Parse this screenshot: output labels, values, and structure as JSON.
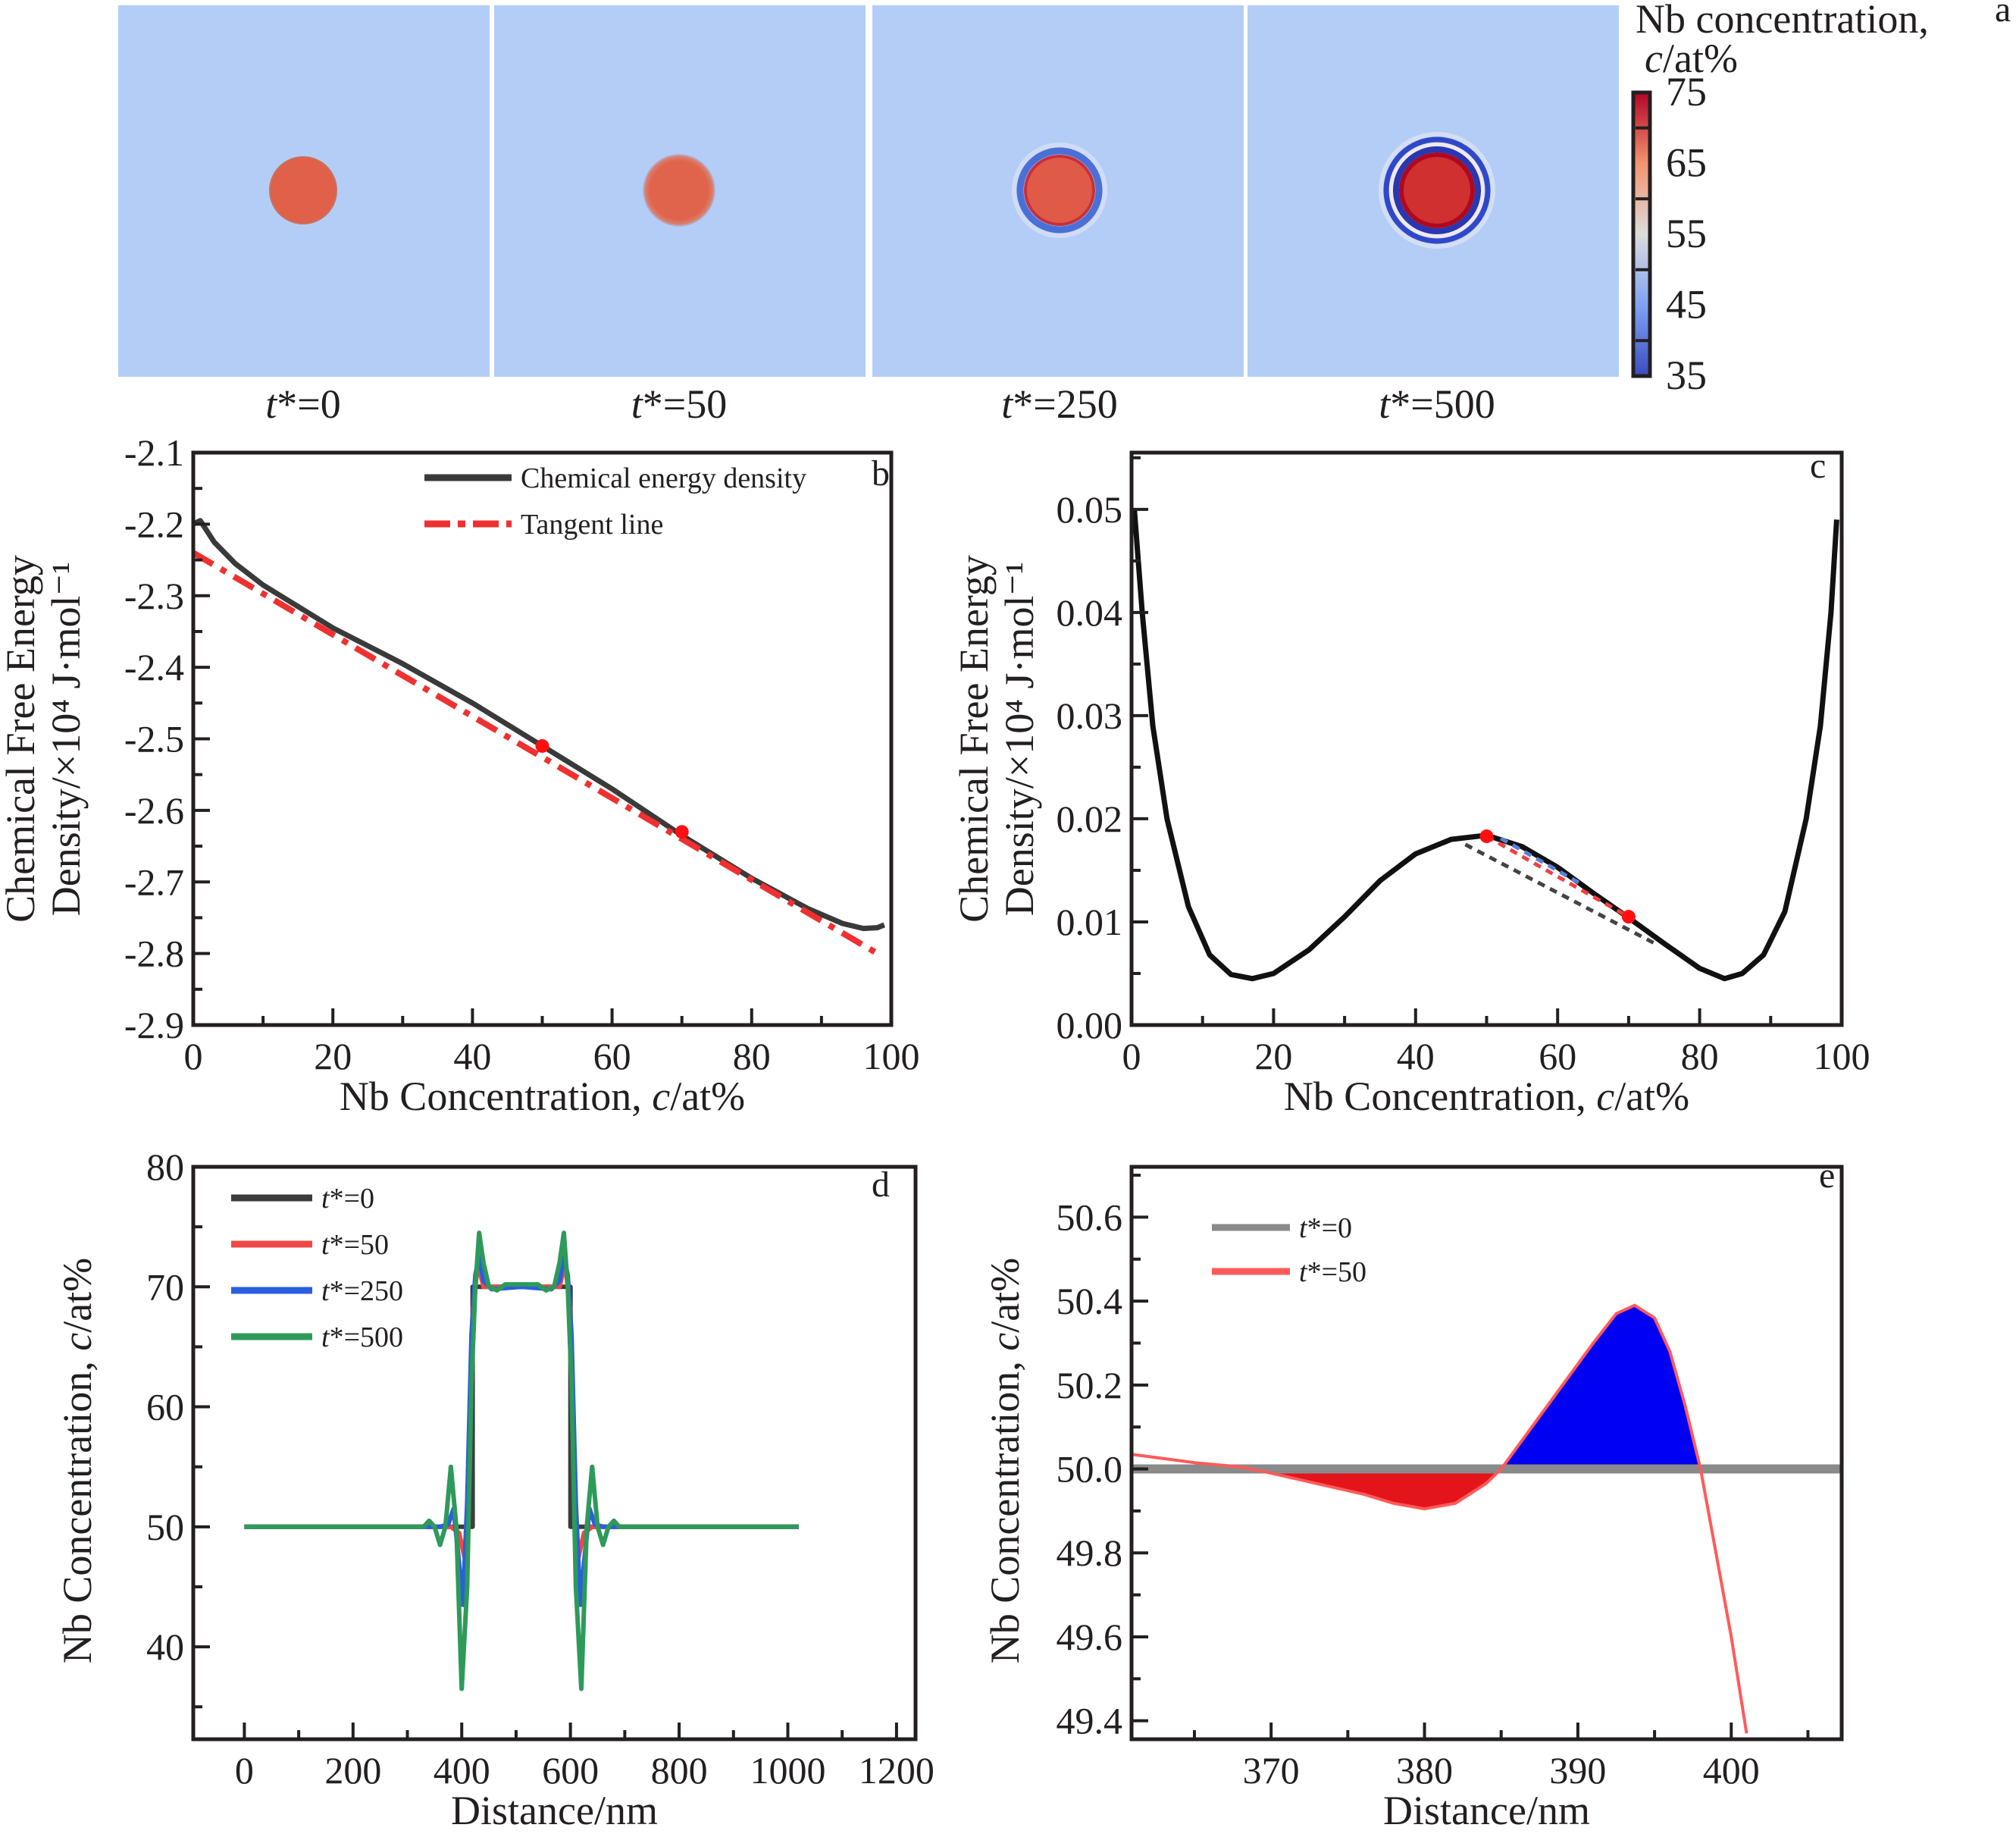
{
  "panel_a": {
    "panel_label": "a",
    "colorbar": {
      "title_line1": "Nb concentration,",
      "title_var": "c",
      "title_unit": "/at%",
      "ticks": [
        75,
        65,
        55,
        45,
        35
      ],
      "range": [
        35,
        75
      ],
      "colors": [
        "#3b4cc0",
        "#7ea3f4",
        "#dddcdb",
        "#f2946f",
        "#b40426"
      ]
    },
    "background_color": "#b4cdf7",
    "frames": [
      {
        "var": "t",
        "label": "*=0"
      },
      {
        "var": "t",
        "label": "*=50"
      },
      {
        "var": "t",
        "label": "*=250"
      },
      {
        "var": "t",
        "label": "*=500"
      }
    ]
  },
  "chart_data": [
    {
      "panel": "b",
      "type": "line",
      "xlabel_prefix": "Nb Concentration, ",
      "xlabel_var": "c",
      "xlabel_suffix": "/at%",
      "ylabel_line1": "Chemical Free Energy",
      "ylabel_line2": "Density/×10⁴ J·mol⁻¹",
      "xlim": [
        0,
        100
      ],
      "ylim": [
        -2.9,
        -2.1
      ],
      "xticks": [
        0,
        20,
        40,
        60,
        80,
        100
      ],
      "yticks": [
        -2.9,
        -2.8,
        -2.7,
        -2.6,
        -2.5,
        -2.4,
        -2.3,
        -2.2,
        -2.1
      ],
      "ytick_labels": [
        "-2.9",
        "-2.8",
        "-2.7",
        "-2.6",
        "-2.5",
        "-2.4",
        "-2.3",
        "-2.2",
        "-2.1"
      ],
      "legend_placement": "top-right",
      "series": [
        {
          "name": "Chemical energy density",
          "color": "#3a3a3a",
          "style": "solid",
          "points": [
            [
              0,
              -2.2
            ],
            [
              1,
              -2.195
            ],
            [
              3,
              -2.225
            ],
            [
              6,
              -2.255
            ],
            [
              10,
              -2.285
            ],
            [
              15,
              -2.315
            ],
            [
              20,
              -2.345
            ],
            [
              30,
              -2.395
            ],
            [
              40,
              -2.45
            ],
            [
              50,
              -2.51
            ],
            [
              60,
              -2.57
            ],
            [
              70,
              -2.635
            ],
            [
              80,
              -2.695
            ],
            [
              88,
              -2.737
            ],
            [
              93,
              -2.758
            ],
            [
              96,
              -2.765
            ],
            [
              98,
              -2.764
            ],
            [
              99,
              -2.76
            ]
          ]
        },
        {
          "name": "Tangent line",
          "color": "#f03030",
          "style": "dashdot",
          "points": [
            [
              0,
              -2.24
            ],
            [
              98,
              -2.8
            ]
          ]
        }
      ],
      "markers": [
        [
          50,
          -2.51
        ],
        [
          70,
          -2.63
        ]
      ],
      "marker_color": "#ff1010"
    },
    {
      "panel": "c",
      "type": "line",
      "xlabel_prefix": "Nb Concentration, ",
      "xlabel_var": "c",
      "xlabel_suffix": "/at%",
      "ylabel_line1": "Chemical Free Energy",
      "ylabel_line2": "Density/×10⁴ J·mol⁻¹",
      "xlim": [
        0,
        100
      ],
      "ylim": [
        0,
        0.0555
      ],
      "xticks": [
        0,
        20,
        40,
        60,
        80,
        100
      ],
      "yticks": [
        0,
        0.01,
        0.02,
        0.03,
        0.04,
        0.05
      ],
      "ytick_labels": [
        "0.00",
        "0.01",
        "0.02",
        "0.03",
        "0.04",
        "0.05"
      ],
      "series": [
        {
          "color": "#111111",
          "style": "solid",
          "points": [
            [
              0.4,
              0.05
            ],
            [
              1.5,
              0.04
            ],
            [
              3,
              0.029
            ],
            [
              5,
              0.02
            ],
            [
              8,
              0.0115
            ],
            [
              11,
              0.0068
            ],
            [
              14,
              0.0049
            ],
            [
              17,
              0.0045
            ],
            [
              20,
              0.005
            ],
            [
              25,
              0.0073
            ],
            [
              30,
              0.0105
            ],
            [
              35,
              0.014
            ],
            [
              40,
              0.0166
            ],
            [
              45,
              0.018
            ],
            [
              50,
              0.0184
            ],
            [
              55,
              0.0173
            ],
            [
              60,
              0.0153
            ],
            [
              65,
              0.0128
            ],
            [
              70,
              0.0104
            ],
            [
              75,
              0.0079
            ],
            [
              80,
              0.0055
            ],
            [
              83.5,
              0.0045
            ],
            [
              86,
              0.005
            ],
            [
              89,
              0.0068
            ],
            [
              92,
              0.011
            ],
            [
              95,
              0.02
            ],
            [
              97,
              0.029
            ],
            [
              98.5,
              0.04
            ],
            [
              99.3,
              0.049
            ]
          ]
        },
        {
          "color": "#f04040",
          "style": "dashed",
          "points": [
            [
              50,
              0.0183
            ],
            [
              70,
              0.0105
            ]
          ]
        },
        {
          "color": "#444444",
          "style": "dashed",
          "points": [
            [
              47,
              0.0175
            ],
            [
              74,
              0.0078
            ]
          ]
        },
        {
          "color": "#5b7fd8",
          "style": "dashed",
          "points": [
            [
              52,
              0.0181
            ],
            [
              63,
              0.0138
            ]
          ]
        }
      ],
      "markers": [
        [
          50,
          0.0183
        ],
        [
          70,
          0.0105
        ]
      ],
      "marker_color": "#ff1010"
    },
    {
      "panel": "d",
      "type": "line",
      "xlabel": "Distance/nm",
      "ylabel_prefix": "Nb Concentration, ",
      "ylabel_var": "c",
      "ylabel_suffix": "/at%",
      "xlim": [
        -94,
        1235
      ],
      "ylim": [
        32.3,
        80
      ],
      "xticks": [
        0,
        200,
        400,
        600,
        800,
        1000,
        1200
      ],
      "yticks": [
        40,
        50,
        60,
        70,
        80
      ],
      "ytick_labels": [
        "40",
        "50",
        "60",
        "70",
        "80"
      ],
      "legend_placement": "top-left",
      "series": [
        {
          "var": "t",
          "name": "*=0",
          "color": "#3c3c3c",
          "points": [
            [
              0,
              50
            ],
            [
              420,
              50
            ],
            [
              420,
              70
            ],
            [
              600,
              70
            ],
            [
              600,
              50
            ],
            [
              1020,
              50
            ]
          ]
        },
        {
          "var": "t",
          "name": "*=50",
          "color": "#f04848",
          "points": [
            [
              0,
              50
            ],
            [
              380,
              50
            ],
            [
              395,
              49.5
            ],
            [
              405,
              47.5
            ],
            [
              412,
              52
            ],
            [
              420,
              68
            ],
            [
              430,
              72
            ],
            [
              440,
              70
            ],
            [
              510,
              70
            ],
            [
              580,
              70
            ],
            [
              590,
              72
            ],
            [
              600,
              68
            ],
            [
              608,
              52
            ],
            [
              615,
              47.5
            ],
            [
              625,
              49.5
            ],
            [
              640,
              50
            ],
            [
              1020,
              50
            ]
          ]
        },
        {
          "var": "t",
          "name": "*=250",
          "color": "#2a5ee0",
          "points": [
            [
              0,
              50
            ],
            [
              360,
              50
            ],
            [
              375,
              50.2
            ],
            [
              385,
              51.5
            ],
            [
              395,
              47
            ],
            [
              402,
              43.5
            ],
            [
              410,
              52
            ],
            [
              418,
              66
            ],
            [
              425,
              71
            ],
            [
              432,
              72.5
            ],
            [
              440,
              70.5
            ],
            [
              455,
              69.8
            ],
            [
              510,
              70
            ],
            [
              565,
              69.8
            ],
            [
              580,
              70.5
            ],
            [
              588,
              72.5
            ],
            [
              595,
              71
            ],
            [
              602,
              66
            ],
            [
              610,
              52
            ],
            [
              618,
              43.5
            ],
            [
              625,
              47
            ],
            [
              635,
              51.5
            ],
            [
              645,
              50.2
            ],
            [
              660,
              50
            ],
            [
              1020,
              50
            ]
          ]
        },
        {
          "var": "t",
          "name": "*=500",
          "color": "#2e9a5a",
          "points": [
            [
              0,
              50
            ],
            [
              330,
              50
            ],
            [
              340,
              50.5
            ],
            [
              350,
              50
            ],
            [
              360,
              48.5
            ],
            [
              370,
              50
            ],
            [
              380,
              55
            ],
            [
              390,
              50
            ],
            [
              400,
              36.5
            ],
            [
              410,
              45
            ],
            [
              418,
              62
            ],
            [
              425,
              70
            ],
            [
              432,
              74.5
            ],
            [
              440,
              72
            ],
            [
              450,
              70
            ],
            [
              465,
              69.7
            ],
            [
              480,
              70.2
            ],
            [
              540,
              70.2
            ],
            [
              555,
              69.7
            ],
            [
              570,
              70
            ],
            [
              580,
              72
            ],
            [
              588,
              74.5
            ],
            [
              595,
              70
            ],
            [
              602,
              62
            ],
            [
              610,
              45
            ],
            [
              620,
              36.5
            ],
            [
              630,
              50
            ],
            [
              640,
              55
            ],
            [
              650,
              50
            ],
            [
              660,
              48.5
            ],
            [
              670,
              50
            ],
            [
              680,
              50.5
            ],
            [
              690,
              50
            ],
            [
              1020,
              50
            ]
          ]
        }
      ]
    },
    {
      "panel": "e",
      "type": "area",
      "xlabel": "Distance/nm",
      "ylabel_prefix": "Nb Concentration, ",
      "ylabel_var": "c",
      "ylabel_suffix": "/at%",
      "xlim": [
        360.9,
        407.2
      ],
      "ylim": [
        49.356,
        50.72
      ],
      "xticks": [
        370,
        380,
        390,
        400
      ],
      "yticks": [
        49.4,
        49.6,
        49.8,
        50.0,
        50.2,
        50.4,
        50.6
      ],
      "ytick_labels": [
        "49.4",
        "49.6",
        "49.8",
        "50.0",
        "50.2",
        "50.4",
        "50.6"
      ],
      "legend_placement": "top-left",
      "series": [
        {
          "var": "t",
          "name": "*=0",
          "color": "#8a8a8a",
          "points": [
            [
              360.9,
              50
            ],
            [
              407.2,
              50
            ]
          ]
        },
        {
          "var": "t",
          "name": "*=50",
          "color": "#ff5a5a",
          "points": [
            [
              360.9,
              50.035
            ],
            [
              365,
              50.015
            ],
            [
              368,
              50.005
            ],
            [
              370,
              49.99
            ],
            [
              373,
              49.965
            ],
            [
              376,
              49.94
            ],
            [
              378,
              49.918
            ],
            [
              380,
              49.905
            ],
            [
              382,
              49.918
            ],
            [
              384,
              49.965
            ],
            [
              385,
              50.0
            ],
            [
              387,
              50.1
            ],
            [
              389,
              50.2
            ],
            [
              391,
              50.3
            ],
            [
              392.5,
              50.37
            ],
            [
              393.7,
              50.39
            ],
            [
              395,
              50.36
            ],
            [
              396,
              50.28
            ],
            [
              397,
              50.15
            ],
            [
              398,
              50.0
            ],
            [
              399,
              49.8
            ],
            [
              400,
              49.6
            ],
            [
              401,
              49.37
            ]
          ]
        }
      ],
      "fills": [
        {
          "color": "#e3141a",
          "from": 368.5,
          "to": 385,
          "side": "below"
        },
        {
          "color": "#0000f2",
          "from": 385,
          "to": 398,
          "side": "above"
        }
      ],
      "baseline": 50.0
    }
  ]
}
